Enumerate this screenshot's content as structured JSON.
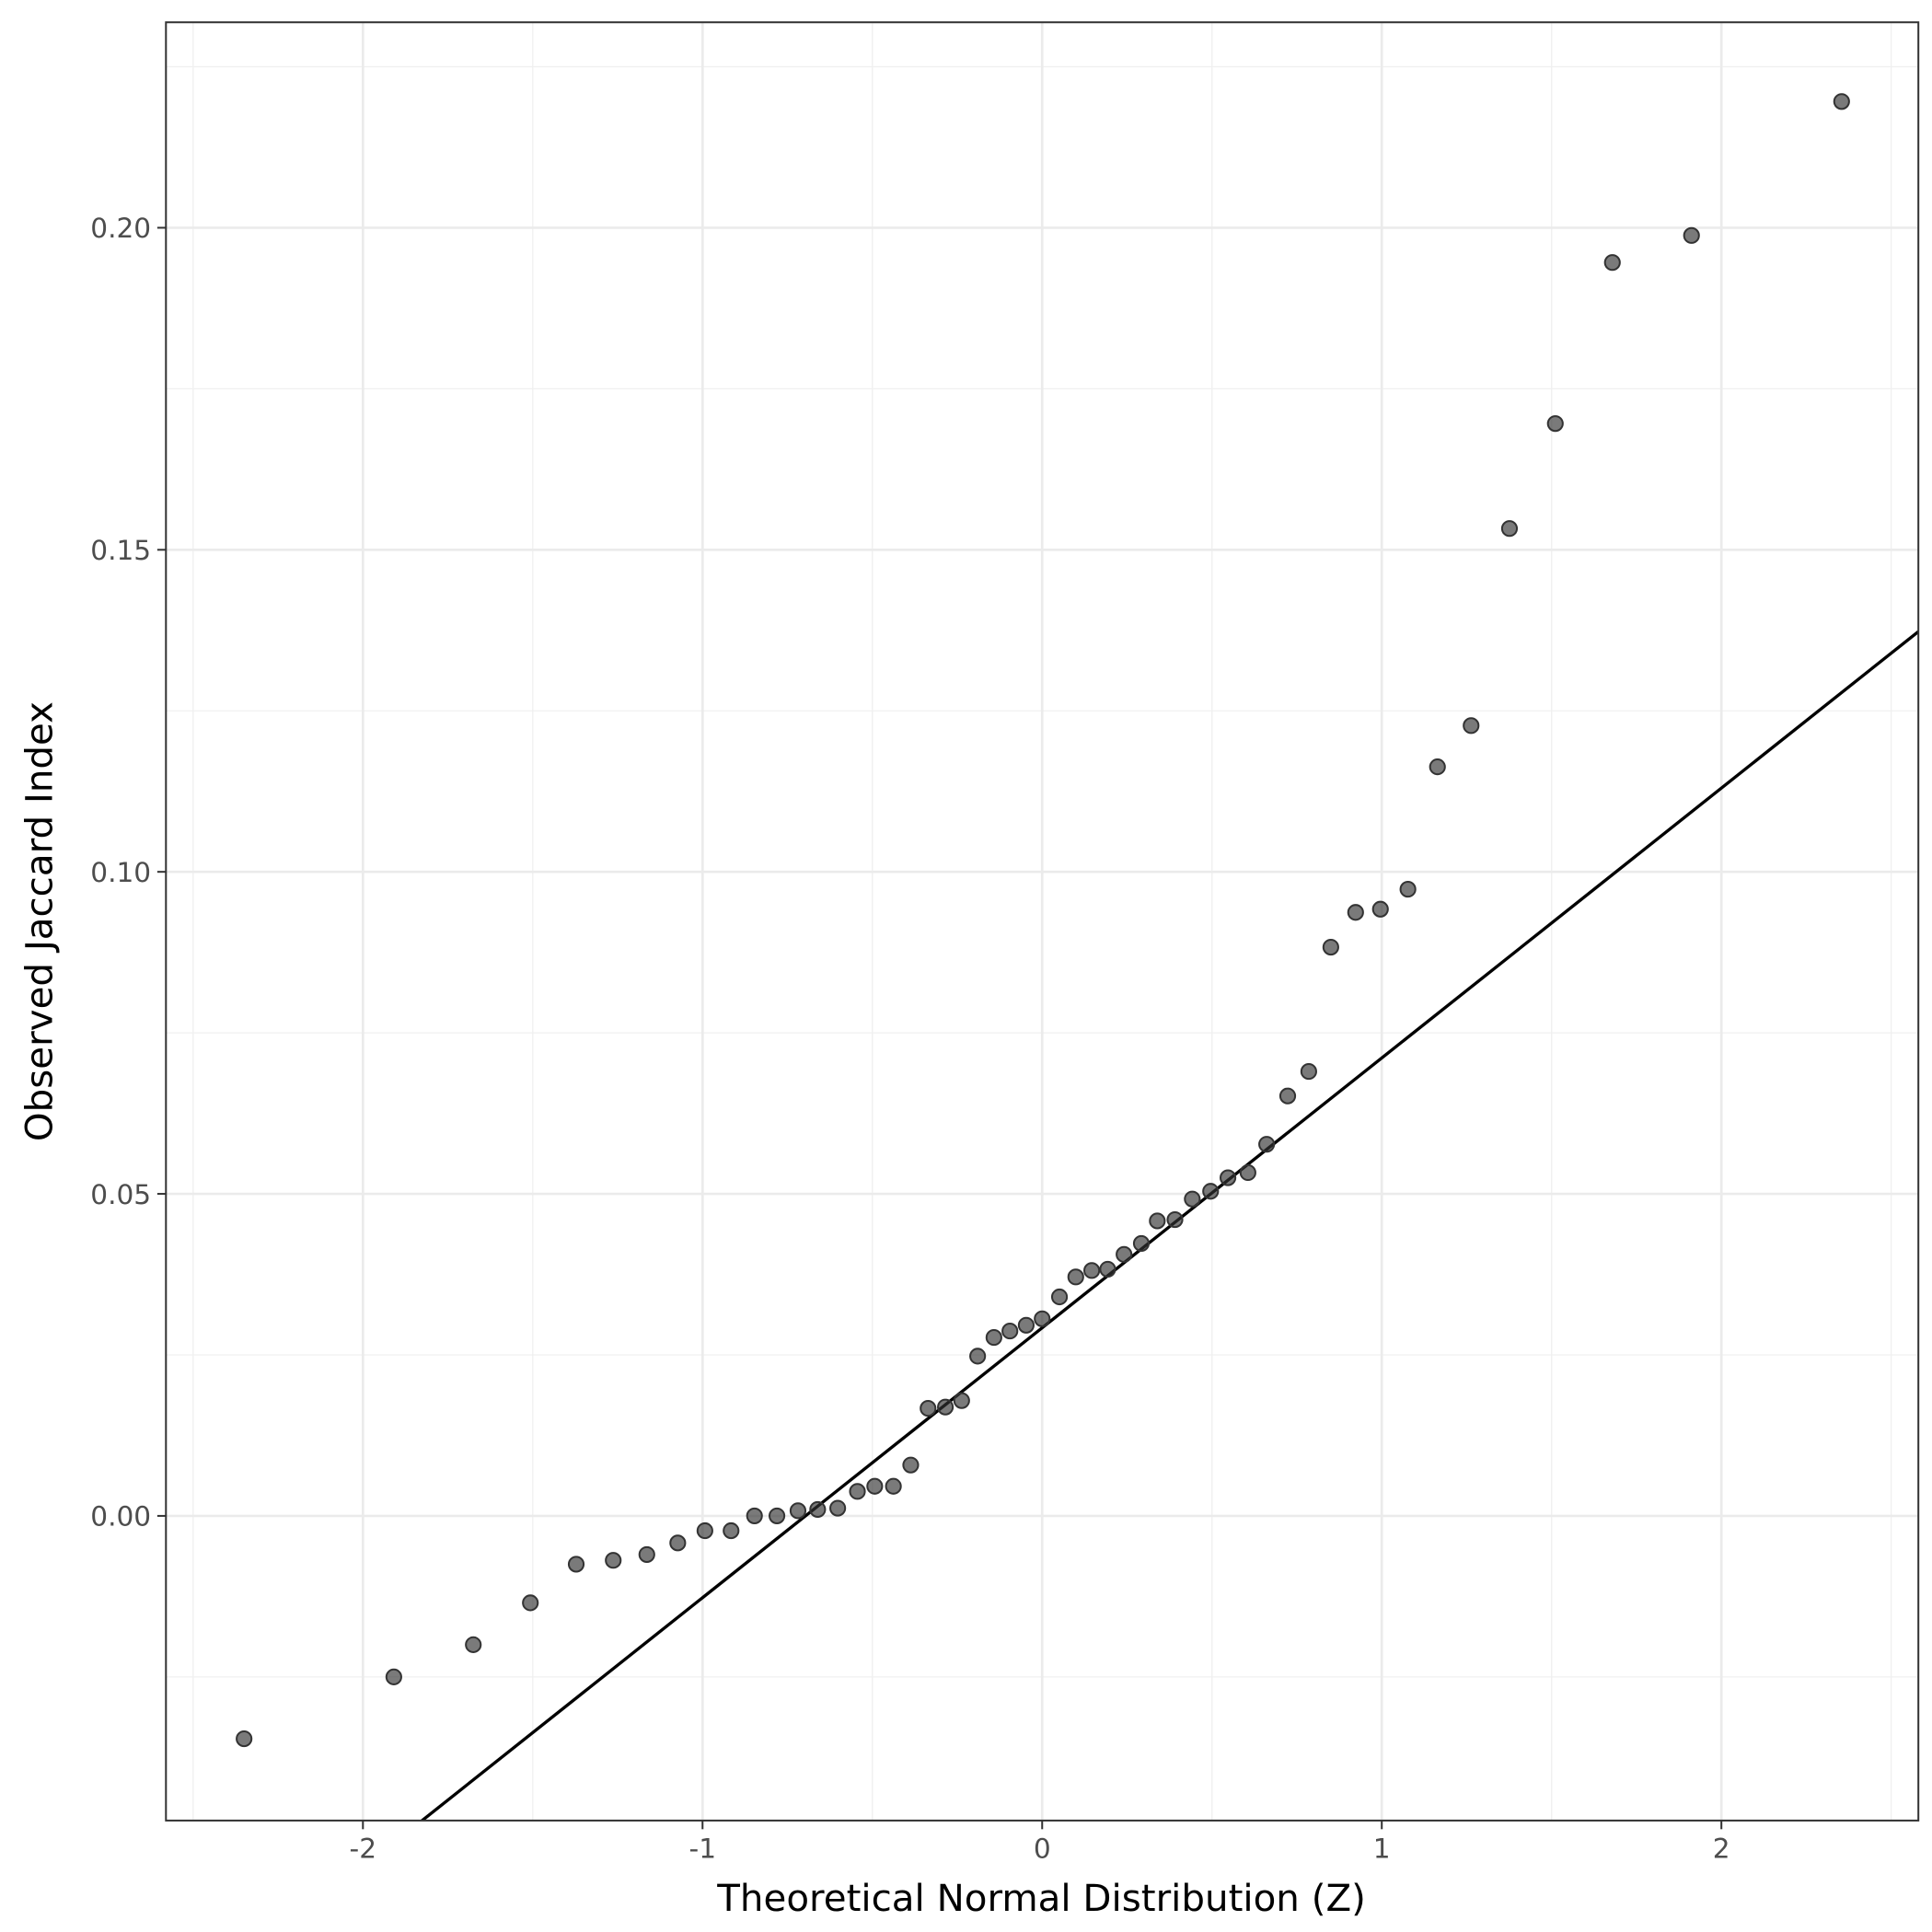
{
  "chart_data": {
    "type": "scatter",
    "x_label": "Theoretical Normal Distribution (Z)",
    "y_label": "Observed Jaccard Index",
    "xlim": [
      -2.58,
      2.58
    ],
    "ylim": [
      -0.0473,
      0.2319
    ],
    "xticks": [
      -2,
      -1,
      0,
      1,
      2
    ],
    "yticks": [
      {
        "value": 0,
        "label": "0.00"
      },
      0.05,
      {
        "value": 0.1,
        "label": "0.10"
      },
      0.15,
      {
        "value": 0.2,
        "label": "0.20"
      }
    ],
    "xminor": [
      -2.5,
      -1.5,
      -0.5,
      0.5,
      1.5,
      2.5
    ],
    "yminor": [
      -0.025,
      0.025,
      0.075,
      0.125,
      0.175,
      0.225
    ],
    "grid": true,
    "color": "#333333",
    "reference_line": {
      "intercept": 0.0292,
      "slope": 0.0419,
      "color": "#000000"
    },
    "x": [
      -2.35,
      -1.909,
      -1.675,
      -1.507,
      -1.372,
      -1.263,
      -1.164,
      -1.073,
      -0.993,
      -0.916,
      -0.847,
      -0.781,
      -0.719,
      -0.661,
      -0.602,
      -0.544,
      -0.493,
      -0.438,
      -0.387,
      -0.336,
      -0.285,
      -0.237,
      -0.19,
      -0.142,
      -0.095,
      -0.047,
      0,
      0.051,
      0.099,
      0.146,
      0.193,
      0.241,
      0.292,
      0.339,
      0.391,
      0.442,
      0.496,
      0.547,
      0.606,
      0.661,
      0.723,
      0.785,
      0.85,
      0.923,
      0.996,
      1.077,
      1.164,
      1.263,
      1.376,
      1.511,
      1.679,
      1.912,
      2.354
    ],
    "values": [
      -0.0346,
      -0.025,
      -0.02,
      -0.0135,
      -0.0075,
      -0.0069,
      -0.006,
      -0.0042,
      -0.0023,
      -0.0023,
      0,
      0,
      0.0008,
      0.001,
      0.0012,
      0.0038,
      0.0046,
      0.0046,
      0.0079,
      0.0167,
      0.0169,
      0.0179,
      0.0248,
      0.0277,
      0.0287,
      0.0296,
      0.0306,
      0.034,
      0.0371,
      0.0381,
      0.0383,
      0.0406,
      0.0423,
      0.0458,
      0.046,
      0.0492,
      0.0504,
      0.0525,
      0.0533,
      0.0577,
      0.0652,
      0.069,
      0.0883,
      0.0937,
      0.0942,
      0.0973,
      0.1163,
      0.1227,
      0.1533,
      0.1696,
      0.1946,
      0.1988,
      0.2196
    ]
  }
}
